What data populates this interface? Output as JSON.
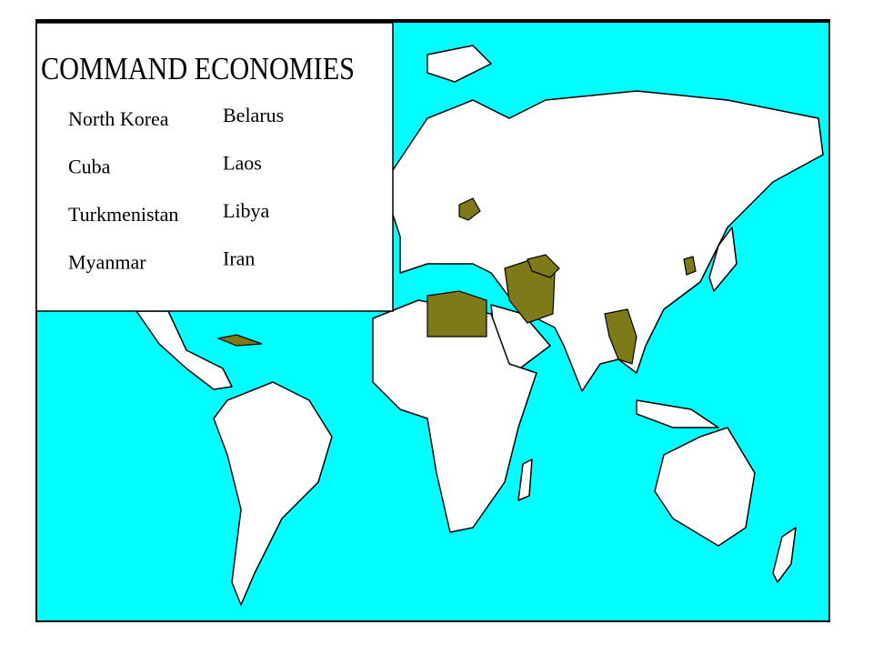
{
  "title": "COMMAND ECONOMIES",
  "countries": {
    "left": [
      "North Korea",
      "Cuba",
      "Turkmenistan",
      "Myanmar"
    ],
    "right": [
      "Belarus",
      "Laos",
      "Libya",
      "Iran"
    ]
  }
}
